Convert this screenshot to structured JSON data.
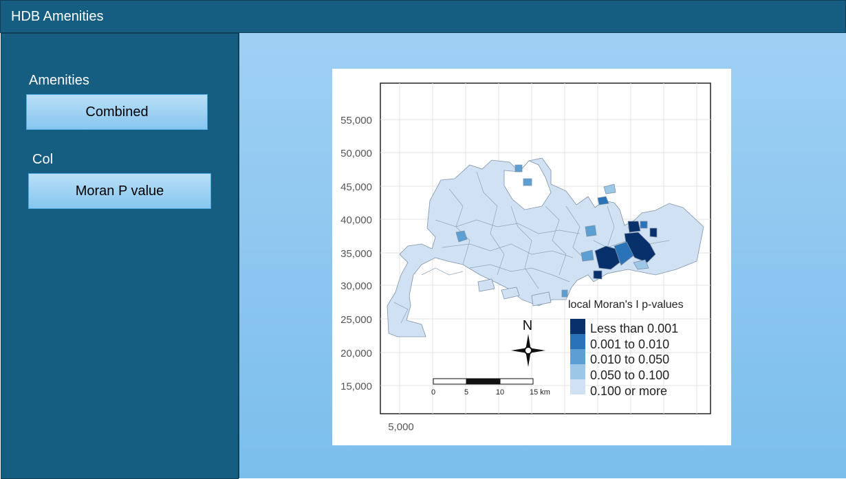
{
  "app": {
    "title": "HDB Amenities"
  },
  "sidebar": {
    "amenities_label": "Amenities",
    "amenities_value": "Combined",
    "col_label": "Col",
    "col_value": "Moran P value"
  },
  "map": {
    "y_ticks": [
      "55,000",
      "50,000",
      "45,000",
      "40,000",
      "35,000",
      "30,000",
      "25,000",
      "20,000",
      "15,000"
    ],
    "x_tick": "5,000",
    "compass_label": "N",
    "scale_ticks": [
      "0",
      "5",
      "10",
      "15 km"
    ],
    "legend": {
      "title": "local Moran's I p-values",
      "items": [
        {
          "label": "Less than 0.001",
          "color": "#08306b"
        },
        {
          "label": "0.001 to 0.010",
          "color": "#2b73b8"
        },
        {
          "label": "0.010 to 0.050",
          "color": "#5b9fd3"
        },
        {
          "label": "0.050 to 0.100",
          "color": "#9dc7e6"
        },
        {
          "label": "0.100 or more",
          "color": "#cfe1f3"
        }
      ]
    }
  },
  "colors": {
    "header_bg": "#155e81",
    "sidebar_bg": "#155e81",
    "main_bg": "#8ec7f0",
    "button_bg": "#a6d5f4"
  }
}
